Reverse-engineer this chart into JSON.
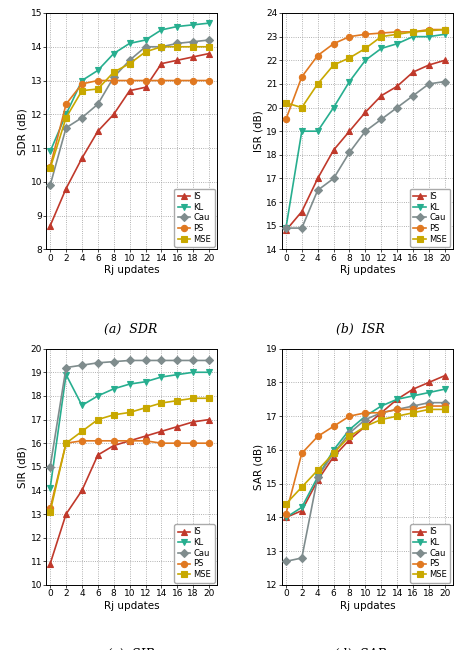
{
  "x": [
    0,
    2,
    4,
    6,
    8,
    10,
    12,
    14,
    16,
    18,
    20
  ],
  "colors": {
    "IS": "#c0392b",
    "KL": "#27ae8f",
    "Cau": "#7f8c8d",
    "PS": "#e07820",
    "MSE": "#c8a800"
  },
  "SDR": {
    "IS": [
      8.7,
      9.8,
      10.7,
      11.5,
      12.0,
      12.7,
      12.8,
      13.5,
      13.6,
      13.7,
      13.8
    ],
    "KL": [
      10.9,
      12.0,
      13.0,
      13.3,
      13.8,
      14.1,
      14.2,
      14.5,
      14.6,
      14.65,
      14.7
    ],
    "Cau": [
      9.9,
      11.6,
      11.9,
      12.3,
      13.1,
      13.6,
      14.0,
      14.0,
      14.1,
      14.15,
      14.2
    ],
    "PS": [
      10.45,
      12.3,
      12.9,
      13.0,
      13.0,
      13.0,
      13.0,
      13.0,
      13.0,
      13.0,
      13.0
    ],
    "MSE": [
      10.4,
      11.9,
      12.7,
      12.75,
      13.25,
      13.5,
      13.85,
      14.0,
      14.0,
      14.0,
      14.0
    ]
  },
  "SDR_ylim": [
    8,
    15
  ],
  "SDR_yticks": [
    8,
    9,
    10,
    11,
    12,
    13,
    14,
    15
  ],
  "ISR": {
    "IS": [
      14.8,
      15.6,
      17.0,
      18.2,
      19.0,
      19.8,
      20.5,
      20.9,
      21.5,
      21.8,
      22.0
    ],
    "KL": [
      14.9,
      19.0,
      19.0,
      20.0,
      21.1,
      22.0,
      22.5,
      22.7,
      23.0,
      23.0,
      23.1
    ],
    "Cau": [
      14.9,
      14.9,
      16.5,
      17.0,
      18.1,
      19.0,
      19.5,
      20.0,
      20.5,
      21.0,
      21.1
    ],
    "PS": [
      19.5,
      21.3,
      22.2,
      22.7,
      23.0,
      23.1,
      23.15,
      23.2,
      23.2,
      23.3,
      23.3
    ],
    "MSE": [
      20.2,
      20.0,
      21.0,
      21.8,
      22.1,
      22.5,
      23.0,
      23.1,
      23.2,
      23.25,
      23.3
    ]
  },
  "ISR_ylim": [
    14,
    24
  ],
  "ISR_yticks": [
    14,
    15,
    16,
    17,
    18,
    19,
    20,
    21,
    22,
    23,
    24
  ],
  "SIR": {
    "IS": [
      10.9,
      13.0,
      14.0,
      15.5,
      15.9,
      16.1,
      16.3,
      16.5,
      16.7,
      16.9,
      17.0
    ],
    "KL": [
      14.1,
      18.9,
      17.6,
      18.0,
      18.3,
      18.5,
      18.6,
      18.8,
      18.9,
      19.0,
      19.0
    ],
    "Cau": [
      15.0,
      19.2,
      19.3,
      19.4,
      19.45,
      19.5,
      19.5,
      19.5,
      19.5,
      19.5,
      19.5
    ],
    "PS": [
      13.25,
      16.0,
      16.1,
      16.1,
      16.1,
      16.1,
      16.1,
      16.0,
      16.0,
      16.0,
      16.0
    ],
    "MSE": [
      13.1,
      16.0,
      16.5,
      17.0,
      17.2,
      17.3,
      17.5,
      17.7,
      17.8,
      17.9,
      17.9
    ]
  },
  "SIR_ylim": [
    10,
    20
  ],
  "SIR_yticks": [
    10,
    11,
    12,
    13,
    14,
    15,
    16,
    17,
    18,
    19,
    20
  ],
  "SAR": {
    "IS": [
      14.0,
      14.2,
      15.1,
      15.8,
      16.3,
      16.7,
      17.1,
      17.5,
      17.8,
      18.0,
      18.2
    ],
    "KL": [
      14.0,
      14.3,
      15.2,
      16.0,
      16.6,
      17.0,
      17.3,
      17.5,
      17.6,
      17.7,
      17.8
    ],
    "Cau": [
      12.7,
      12.8,
      15.2,
      15.9,
      16.5,
      16.9,
      17.1,
      17.2,
      17.3,
      17.4,
      17.4
    ],
    "PS": [
      14.1,
      15.9,
      16.4,
      16.7,
      17.0,
      17.1,
      17.1,
      17.2,
      17.2,
      17.3,
      17.3
    ],
    "MSE": [
      14.4,
      14.9,
      15.4,
      15.9,
      16.4,
      16.7,
      16.9,
      17.0,
      17.1,
      17.2,
      17.2
    ]
  },
  "SAR_ylim": [
    12,
    19
  ],
  "SAR_yticks": [
    12,
    13,
    14,
    15,
    16,
    17,
    18,
    19
  ],
  "markers": {
    "IS": "^",
    "KL": "v",
    "Cau": "D",
    "PS": "o",
    "MSE": "s"
  },
  "series_order": [
    "IS",
    "KL",
    "Cau",
    "PS",
    "MSE"
  ],
  "subplot_labels": [
    "(a)  SDR",
    "(b)  ISR",
    "(c)  SIR",
    "(d)  SAR"
  ],
  "ylabels": [
    "SDR (dB)",
    "ISR (dB)",
    "SIR (dB)",
    "SAR (dB)"
  ],
  "xlabel": "Rj updates",
  "xticks": [
    0,
    2,
    4,
    6,
    8,
    10,
    12,
    14,
    16,
    18,
    20
  ],
  "markersize": 4.5,
  "linewidth": 1.2
}
